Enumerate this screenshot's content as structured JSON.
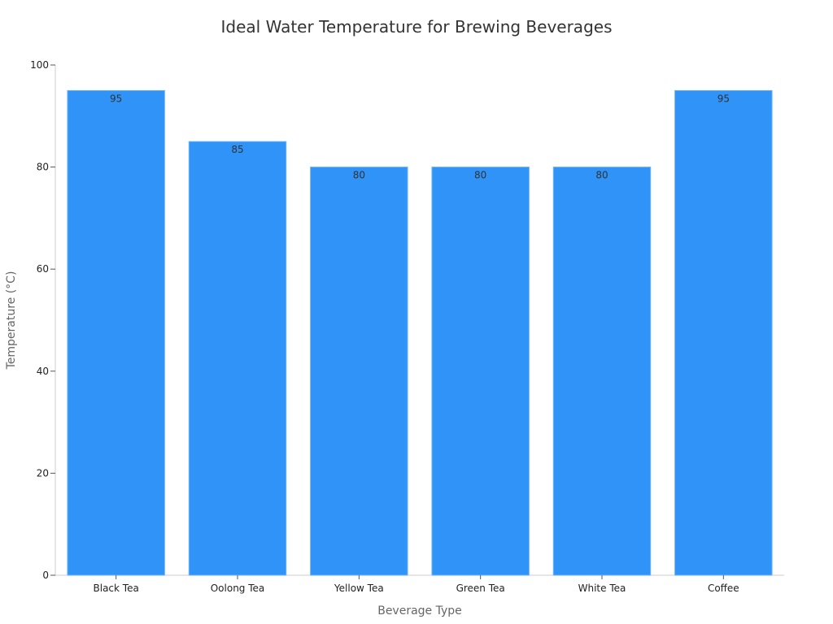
{
  "chart_data": {
    "type": "bar",
    "title": "Ideal Water Temperature for Brewing Beverages",
    "xlabel": "Beverage Type",
    "ylabel": "Temperature (°C)",
    "categories": [
      "Black Tea",
      "Oolong Tea",
      "Yellow Tea",
      "Green Tea",
      "White Tea",
      "Coffee"
    ],
    "values": [
      95,
      85,
      80,
      80,
      80,
      95
    ],
    "ylim": [
      0,
      100
    ],
    "yticks": [
      0,
      20,
      40,
      60,
      80,
      100
    ],
    "grid": false,
    "legend": "none",
    "bar_color": "#2f93f8",
    "bar_edge_color": "#6fb4fb"
  }
}
